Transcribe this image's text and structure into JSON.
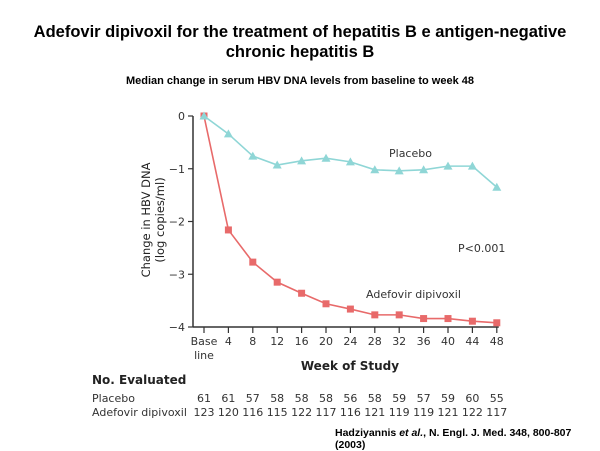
{
  "title_line1": "Adefovir dipivoxil for the treatment of hepatitis B e antigen-negative",
  "title_line2": "chronic hepatitis B",
  "chart_data": {
    "type": "line",
    "title": "Median change in serum HBV DNA levels from baseline to week 48",
    "xlabel": "Week of Study",
    "ylabel_line1": "Change in HBV DNA",
    "ylabel_line2": "(log copies/ml)",
    "x": [
      0,
      4,
      8,
      12,
      16,
      20,
      24,
      28,
      32,
      36,
      40,
      44,
      48
    ],
    "x_tick_labels": [
      "Base line",
      "4",
      "8",
      "12",
      "16",
      "20",
      "24",
      "28",
      "32",
      "36",
      "40",
      "44",
      "48"
    ],
    "y_ticks": [
      0,
      -1,
      -2,
      -3,
      -4
    ],
    "y_tick_labels": [
      "0",
      "−1",
      "−2",
      "−3",
      "−4"
    ],
    "ylim": [
      -4,
      0
    ],
    "grid": false,
    "series": [
      {
        "name": "Placebo",
        "color": "#8fd6d6",
        "marker": "triangle",
        "values": [
          0,
          -0.34,
          -0.76,
          -0.93,
          -0.85,
          -0.8,
          -0.87,
          -1.02,
          -1.04,
          -1.02,
          -0.95,
          -0.95,
          -1.35
        ]
      },
      {
        "name": "Adefovir dipivoxil",
        "color": "#e86a6a",
        "marker": "square",
        "values": [
          0,
          -2.16,
          -2.77,
          -3.15,
          -3.36,
          -3.56,
          -3.66,
          -3.77,
          -3.77,
          -3.84,
          -3.84,
          -3.89,
          -3.92
        ]
      }
    ],
    "annotations": {
      "placebo_label": "Placebo",
      "adefovir_label": "Adefovir dipivoxil",
      "p_value": "P<0.001"
    },
    "table": {
      "heading": "No. Evaluated",
      "rows": [
        {
          "label": "Placebo",
          "values": [
            "61",
            "61",
            "57",
            "58",
            "58",
            "58",
            "56",
            "58",
            "59",
            "57",
            "59",
            "60",
            "55"
          ]
        },
        {
          "label": "Adefovir dipivoxil",
          "values": [
            "123",
            "120",
            "116",
            "115",
            "122",
            "117",
            "116",
            "121",
            "119",
            "119",
            "121",
            "122",
            "117"
          ]
        }
      ]
    }
  },
  "citation_author": "Hadziyannis ",
  "citation_etal": "et al.",
  "citation_rest": ", N. Engl. J. Med. 348, 800-807 (2003)"
}
